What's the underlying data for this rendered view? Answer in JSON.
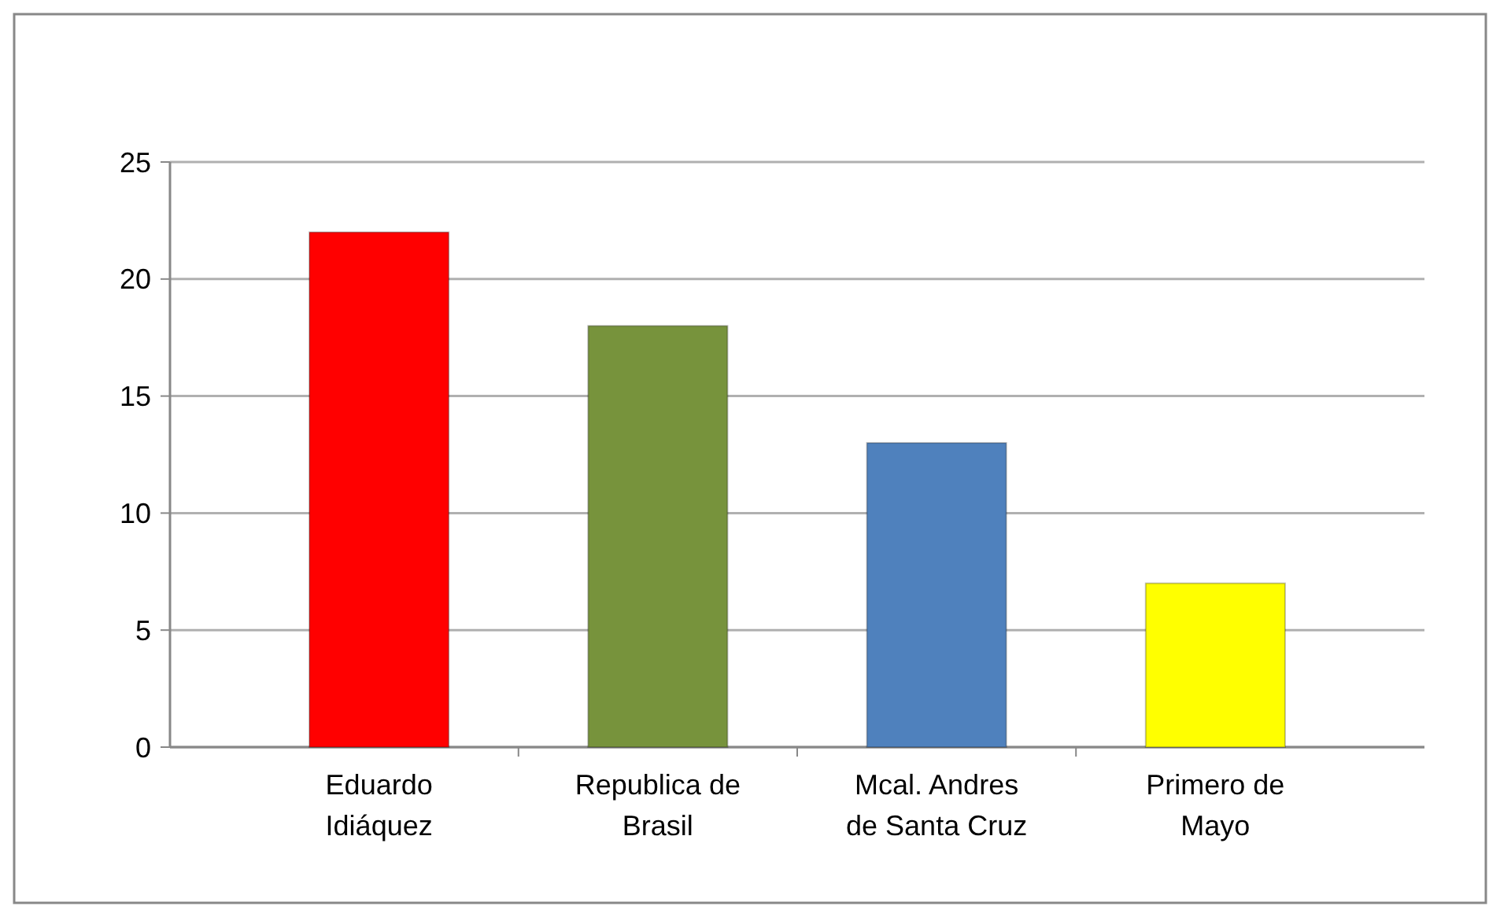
{
  "chart_data": {
    "type": "bar",
    "categories": [
      "Eduardo Idiáquez",
      "Republica de Brasil",
      "Mcal. Andres de Santa Cruz",
      "Primero de Mayo"
    ],
    "values": [
      22,
      18,
      13,
      7
    ],
    "colors": [
      "#ff0000",
      "#77933c",
      "#4f81bd",
      "#ffff00"
    ],
    "ylim": [
      0,
      25
    ],
    "yticks": [
      0,
      5,
      10,
      15,
      20,
      25
    ],
    "grid": "y"
  }
}
